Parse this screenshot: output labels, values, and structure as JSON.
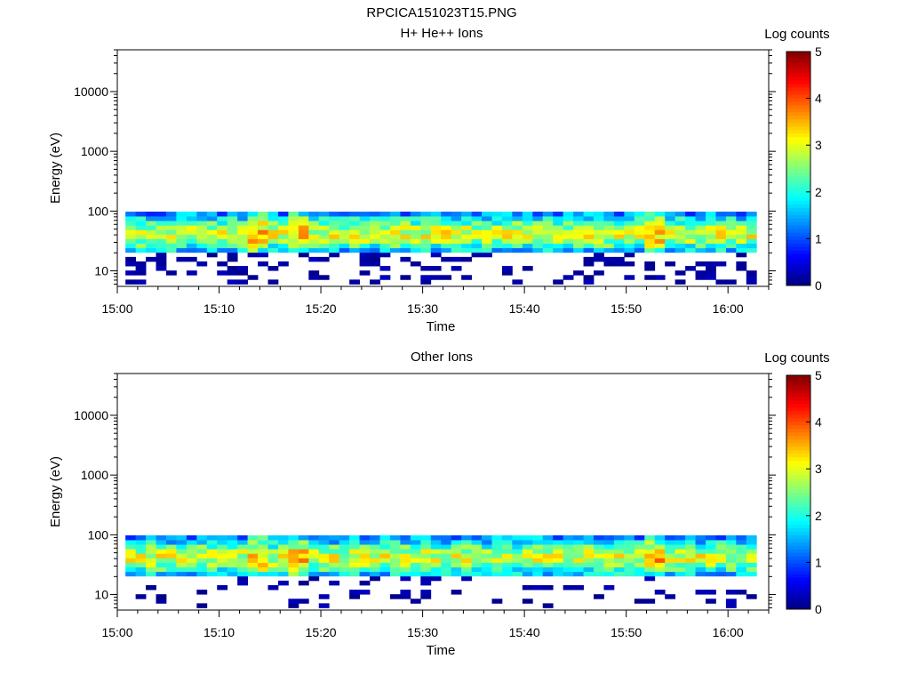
{
  "figure": {
    "title": "RPCICA151023T15.PNG"
  },
  "colormap": [
    "#00007f",
    "#0000ff",
    "#007fff",
    "#00ffff",
    "#7fff7f",
    "#ffff00",
    "#ff7f00",
    "#ff0000",
    "#7f0000"
  ],
  "chart_data": [
    {
      "type": "heatmap",
      "title": "H+ He++ Ions",
      "xlabel": "Time",
      "ylabel": "Energy (eV)",
      "colorbar_label": "Log counts",
      "x_ticks": [
        "15:00",
        "15:10",
        "15:20",
        "15:30",
        "15:40",
        "15:50",
        "16:00"
      ],
      "x_range_minutes": [
        0,
        64
      ],
      "y_scale": "log",
      "y_range": [
        5.5,
        50000
      ],
      "y_ticks": [
        "10",
        "100",
        "1000",
        "10000"
      ],
      "colorbar_range": [
        0,
        5
      ],
      "colorbar_ticks": [
        "0",
        "1",
        "2",
        "3",
        "4",
        "5"
      ],
      "data_extent": {
        "time_start": "15:00.8",
        "time_end": "16:02.8",
        "time_bins": 62,
        "energy_min_eV": 6,
        "energy_max_eV": 98,
        "energy_bins": 16
      },
      "peak_log_counts": 3.2,
      "peak_times": [
        "15:14",
        "15:18",
        "15:53"
      ],
      "background_seed": 11
    },
    {
      "type": "heatmap",
      "title": "Other Ions",
      "xlabel": "Time",
      "ylabel": "Energy (eV)",
      "colorbar_label": "Log counts",
      "x_ticks": [
        "15:00",
        "15:10",
        "15:20",
        "15:30",
        "15:40",
        "15:50",
        "16:00"
      ],
      "x_range_minutes": [
        0,
        64
      ],
      "y_scale": "log",
      "y_range": [
        5.5,
        50000
      ],
      "y_ticks": [
        "10",
        "100",
        "1000",
        "10000"
      ],
      "colorbar_range": [
        0,
        5
      ],
      "colorbar_ticks": [
        "0",
        "1",
        "2",
        "3",
        "4",
        "5"
      ],
      "data_extent": {
        "time_start": "15:00.8",
        "time_end": "16:02.8",
        "time_bins": 62,
        "energy_min_eV": 6,
        "energy_max_eV": 98,
        "energy_bins": 16
      },
      "peak_log_counts": 3.2,
      "peak_times": [
        "15:14",
        "15:18",
        "15:53"
      ],
      "background_seed": 29
    }
  ]
}
